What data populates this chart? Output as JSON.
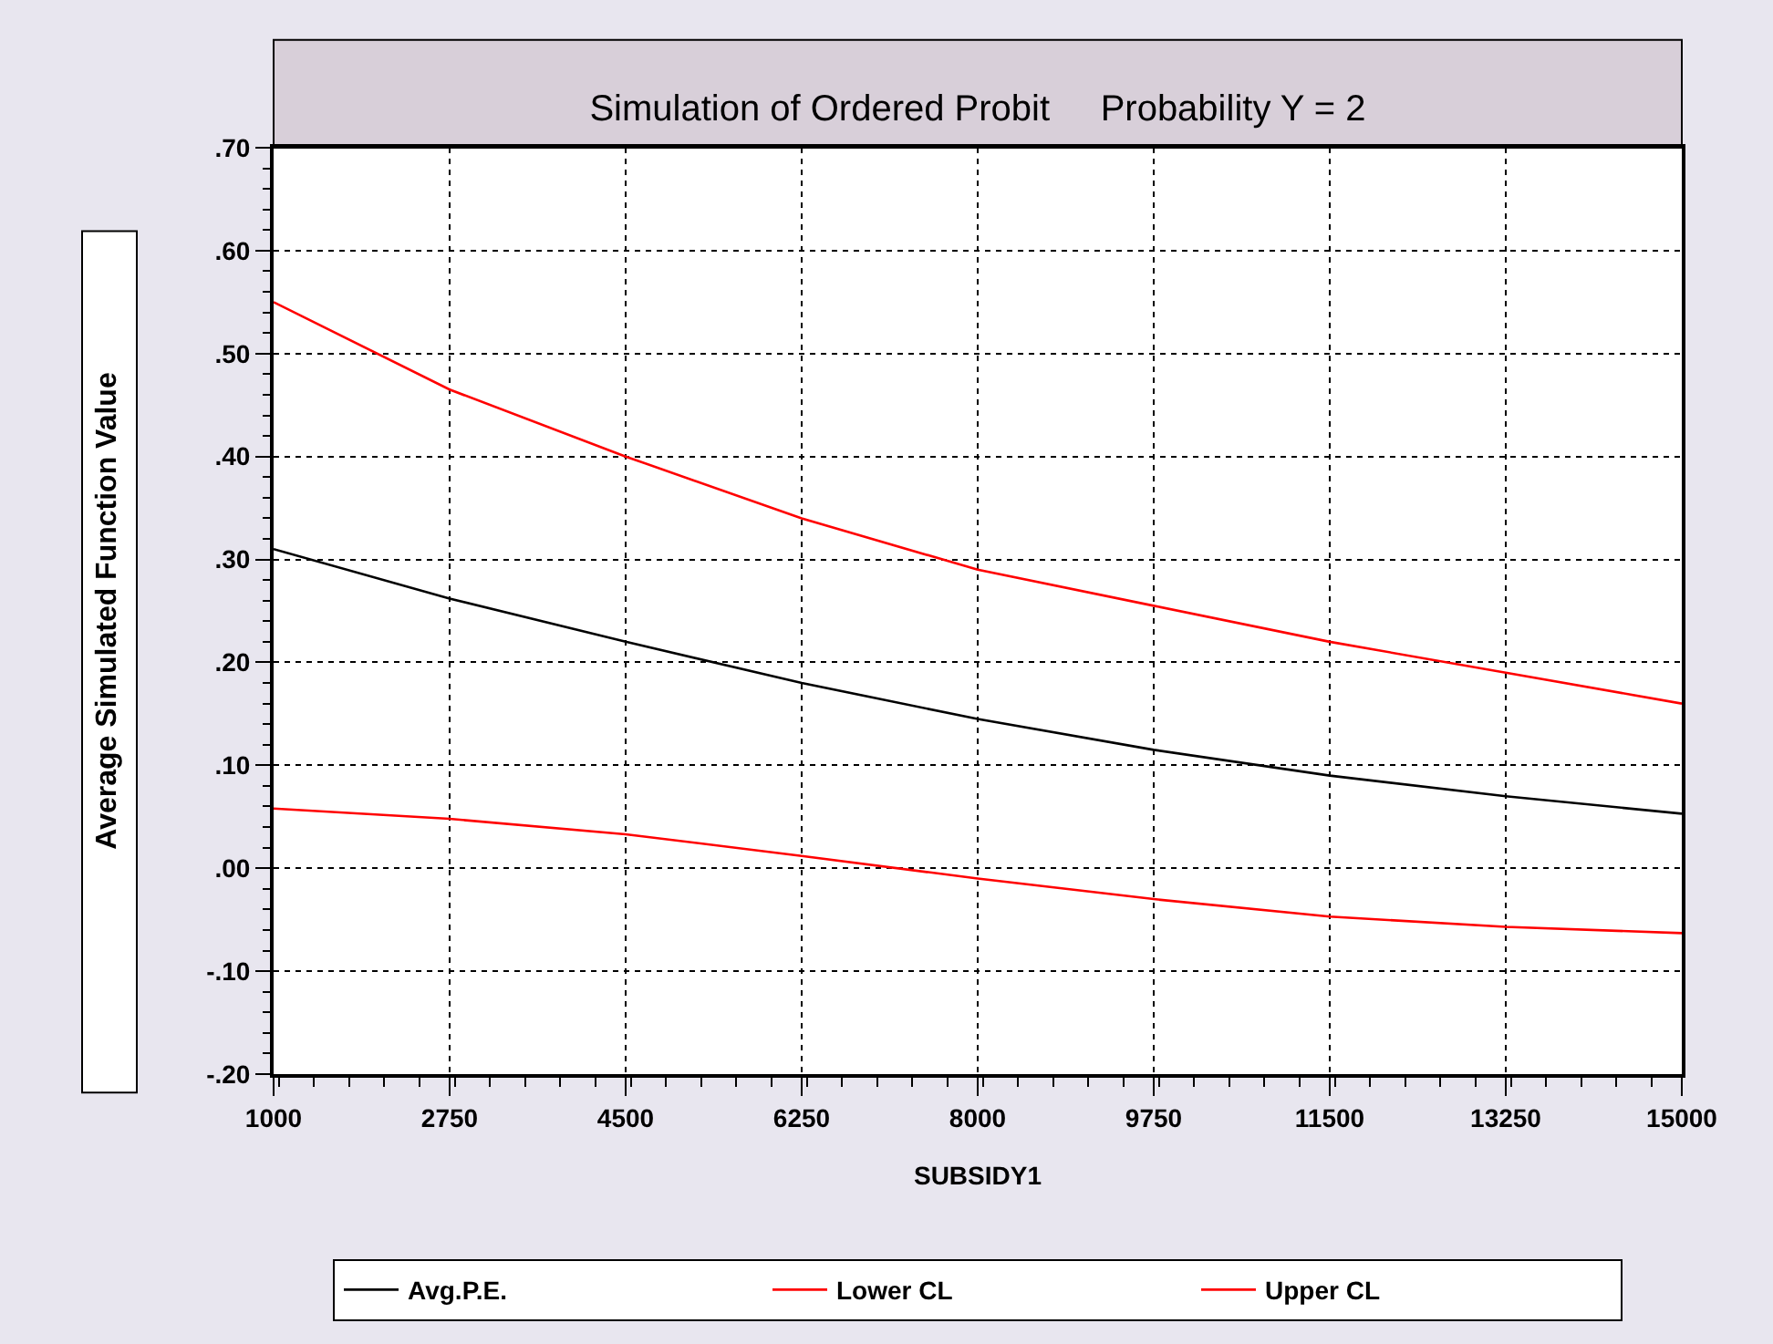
{
  "chart_data": {
    "type": "line",
    "title": "Simulation of Ordered Probit     Probability Y = 2",
    "xlabel": "SUBSIDY1",
    "ylabel": "Average Simulated Function Value",
    "x": [
      1000,
      2750,
      4500,
      6250,
      8000,
      9750,
      11500,
      13250,
      15000
    ],
    "series": [
      {
        "name": "Avg.P.E.",
        "color": "#000000",
        "values": [
          0.31,
          0.262,
          0.22,
          0.18,
          0.145,
          0.115,
          0.09,
          0.07,
          0.053
        ]
      },
      {
        "name": "Lower CL",
        "color": "#ff0000",
        "values": [
          0.058,
          0.048,
          0.033,
          0.012,
          -0.01,
          -0.03,
          -0.047,
          -0.057,
          -0.063
        ]
      },
      {
        "name": "Upper CL",
        "color": "#ff0000",
        "values": [
          0.55,
          0.465,
          0.4,
          0.34,
          0.29,
          0.255,
          0.22,
          0.19,
          0.16
        ]
      }
    ],
    "xlim": [
      1000,
      15000
    ],
    "xticks": [
      1000,
      2750,
      4500,
      6250,
      8000,
      9750,
      11500,
      13250,
      15000
    ],
    "ylim": [
      -0.2,
      0.7
    ],
    "yticks": [
      {
        "value": -0.2,
        "label": "-.20"
      },
      {
        "value": -0.1,
        "label": "-.10"
      },
      {
        "value": 0,
        "label": ".00"
      },
      {
        "value": 0.1,
        "label": ".10"
      },
      {
        "value": 0.2,
        "label": ".20"
      },
      {
        "value": 0.3,
        "label": ".30"
      },
      {
        "value": 0.4,
        "label": ".40"
      },
      {
        "value": 0.5,
        "label": ".50"
      },
      {
        "value": 0.6,
        "label": ".60"
      },
      {
        "value": 0.7,
        "label": ".70"
      }
    ],
    "grid": true,
    "legend": "bottom",
    "marker": "none",
    "line_style": "solid"
  }
}
